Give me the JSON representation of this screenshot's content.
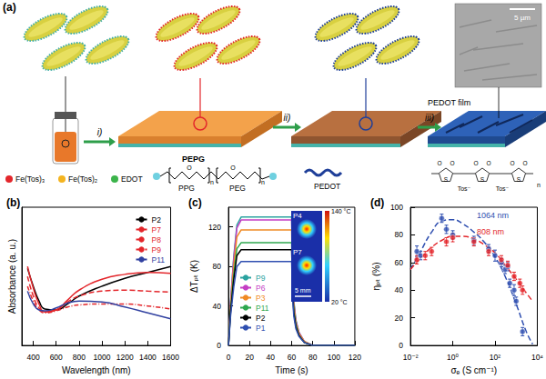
{
  "diagram": {
    "label": "(a)",
    "steps": [
      "i)",
      "ii)",
      "iii)"
    ],
    "components": [
      {
        "name": "Fe(Tos)₃",
        "color": "#e3262b"
      },
      {
        "name": "Fe(Tos)₂",
        "color": "#f4b41f"
      },
      {
        "name": "EDOT",
        "color": "#3cb44b"
      }
    ],
    "copolymer": {
      "name": "PEPG",
      "blocks": [
        "PPG",
        "PEG"
      ],
      "repeat": "n",
      "atom": "O"
    },
    "polymer": {
      "name": "PEDOT",
      "color": "#1f3f99",
      "atoms": [
        "O",
        "S"
      ],
      "counter_ion": "Tos⁻",
      "repeat": "n"
    },
    "film": "PEDOT film",
    "scale_bar": "5 µm"
  },
  "chart_data": [
    {
      "type": "line",
      "title": "(b)",
      "x_label": "Wavelength (nm)",
      "y_label": "Absorbance (a. u.)",
      "x": [
        350,
        400,
        450,
        500,
        600,
        700,
        800,
        1000,
        1200,
        1400,
        1600
      ],
      "xlim": [
        300,
        1600
      ],
      "xticks": [
        400,
        600,
        800,
        1000,
        1200,
        1400,
        1600
      ],
      "ylim": [
        0,
        1.4
      ],
      "tick_labels": "x",
      "grid": false,
      "legend": "upper right",
      "series": [
        {
          "name": "P2",
          "color": "#000000",
          "line_style": "solid",
          "values": [
            0.78,
            0.6,
            0.45,
            0.37,
            0.36,
            0.42,
            0.5,
            0.6,
            0.68,
            0.74,
            0.8
          ]
        },
        {
          "name": "P7",
          "color": "#e3262b",
          "line_style": "solid",
          "values": [
            0.8,
            0.58,
            0.42,
            0.34,
            0.36,
            0.46,
            0.56,
            0.67,
            0.72,
            0.74,
            0.73
          ]
        },
        {
          "name": "P8",
          "color": "#e3262b",
          "line_style": "dashed",
          "values": [
            0.7,
            0.5,
            0.38,
            0.34,
            0.36,
            0.44,
            0.5,
            0.55,
            0.56,
            0.55,
            0.54
          ]
        },
        {
          "name": "P9",
          "color": "#e3262b",
          "line_style": "dashdot",
          "values": [
            0.6,
            0.45,
            0.36,
            0.33,
            0.35,
            0.39,
            0.41,
            0.42,
            0.42,
            0.4,
            0.37
          ]
        },
        {
          "name": "P11",
          "color": "#3040a0",
          "line_style": "solid",
          "values": [
            0.55,
            0.42,
            0.36,
            0.35,
            0.38,
            0.43,
            0.45,
            0.44,
            0.39,
            0.33,
            0.27
          ]
        }
      ]
    },
    {
      "type": "line",
      "title": "(c)",
      "x_label": "Time (s)",
      "y_label": "ΔTₚₜ (K)",
      "x": [
        0,
        2,
        5,
        8,
        12,
        60,
        61,
        62,
        64,
        67,
        72,
        80,
        120
      ],
      "xlim": [
        0,
        120
      ],
      "xticks": [
        0,
        20,
        40,
        60,
        80,
        100,
        120
      ],
      "ylim": [
        0,
        140
      ],
      "yticks": [
        0,
        40,
        80,
        120
      ],
      "grid": false,
      "legend": "left",
      "series": [
        {
          "name": "P9",
          "color": "#2ba3a0",
          "values": [
            0,
            45,
            90,
            122,
            130,
            130,
            72,
            46,
            26,
            13,
            4,
            0,
            0
          ]
        },
        {
          "name": "P6",
          "color": "#c43ec4",
          "values": [
            0,
            44,
            88,
            119,
            127,
            127,
            70,
            44,
            25,
            13,
            4,
            0,
            0
          ]
        },
        {
          "name": "P3",
          "color": "#f08a24",
          "values": [
            0,
            40,
            81,
            110,
            117,
            117,
            64,
            41,
            23,
            12,
            4,
            0,
            0
          ]
        },
        {
          "name": "P11",
          "color": "#2fa84f",
          "values": [
            0,
            36,
            72,
            98,
            104,
            104,
            57,
            36,
            21,
            10,
            3,
            0,
            0
          ]
        },
        {
          "name": "P2",
          "color": "#000000",
          "values": [
            0,
            34,
            67,
            91,
            97,
            97,
            53,
            34,
            19,
            10,
            3,
            0,
            0
          ]
        },
        {
          "name": "P1",
          "color": "#2f4fb0",
          "values": [
            0,
            30,
            59,
            80,
            85,
            85,
            47,
            30,
            17,
            9,
            3,
            0,
            0
          ]
        }
      ],
      "inset": {
        "samples": [
          "P4",
          "P7"
        ],
        "scale_bar": "5 mm",
        "colorbar": {
          "range": [
            20,
            140
          ],
          "ticks": [
            {
              "value": 140,
              "label": "140 °C"
            },
            {
              "value": 20,
              "label": "20 °C"
            }
          ]
        }
      }
    },
    {
      "type": "scatter",
      "title": "(d)",
      "x_label": "σₑ (S cm⁻¹)",
      "y_label": "ηₚₜ (%)",
      "log": "x",
      "xlim": [
        0.01,
        10000
      ],
      "xticks": [
        {
          "value": 0.01,
          "label": "10⁻²"
        },
        {
          "value": 1,
          "label": "10⁰"
        },
        {
          "value": 100,
          "label": "10²"
        },
        {
          "value": 10000,
          "label": "10⁴"
        }
      ],
      "ylim": [
        0,
        100
      ],
      "yticks": [
        0,
        20,
        40,
        60,
        80,
        100
      ],
      "grid": false,
      "series": [
        {
          "name": "1064 nm",
          "color": "#2f4fb0",
          "marker": "circle",
          "line_style": "dashed",
          "x": [
            0.02,
            0.03,
            0.3,
            0.5,
            1,
            10,
            50,
            100,
            200,
            300,
            400,
            500,
            800,
            1000,
            2000
          ],
          "values": [
            68,
            65,
            92,
            84,
            80,
            76,
            70,
            65,
            60,
            55,
            57,
            45,
            40,
            32,
            10
          ],
          "errors": [
            4,
            3,
            3,
            3,
            3,
            3,
            3,
            4,
            3,
            3,
            3,
            3,
            4,
            3,
            3
          ],
          "fit_x": [
            0.01,
            0.03,
            0.1,
            0.3,
            1,
            3,
            10,
            30,
            100,
            300,
            1000,
            3000,
            6000
          ],
          "fit_values": [
            55,
            68,
            82,
            90,
            91,
            88,
            82,
            75,
            64,
            50,
            30,
            10,
            1
          ]
        },
        {
          "name": "808 nm",
          "color": "#e3262b",
          "marker": "circle",
          "line_style": "dashed",
          "x": [
            0.02,
            0.05,
            0.1,
            0.5,
            1,
            10,
            50,
            200,
            400,
            800,
            1500,
            2000
          ],
          "values": [
            62,
            65,
            68,
            75,
            78,
            75,
            68,
            62,
            58,
            50,
            45,
            40
          ],
          "errors": [
            3,
            3,
            3,
            3,
            3,
            3,
            3,
            3,
            3,
            3,
            3,
            3
          ],
          "fit_x": [
            0.01,
            0.03,
            0.1,
            0.3,
            1,
            3,
            10,
            30,
            100,
            300,
            1000,
            3000,
            6000
          ],
          "fit_values": [
            55,
            63,
            71,
            76,
            79,
            79,
            77,
            73,
            67,
            58,
            48,
            38,
            32
          ]
        }
      ]
    }
  ]
}
